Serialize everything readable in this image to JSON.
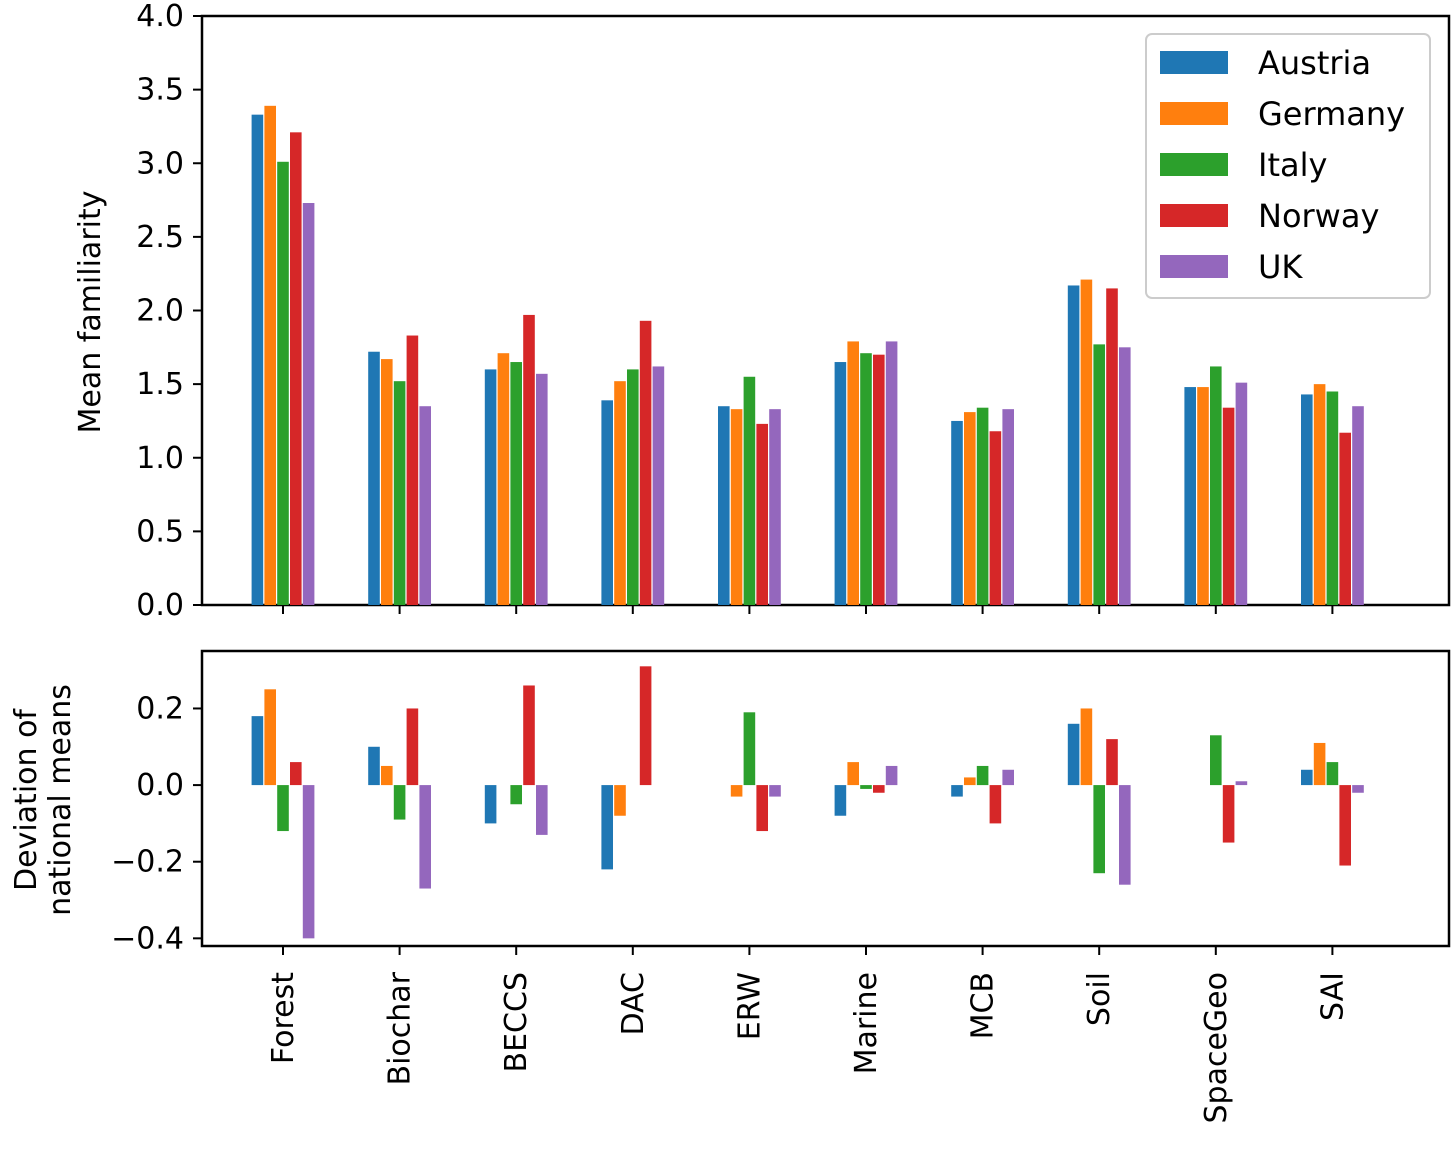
{
  "chart_data": [
    {
      "type": "bar",
      "panel": "top",
      "ylabel": "Mean familiarity",
      "ylim": [
        0,
        4.0
      ],
      "yticks": [
        0.0,
        0.5,
        1.0,
        1.5,
        2.0,
        2.5,
        3.0,
        3.5,
        4.0
      ],
      "ytick_labels": [
        "0.0",
        "0.5",
        "1.0",
        "1.5",
        "2.0",
        "2.5",
        "3.0",
        "3.5",
        "4.0"
      ],
      "legend_position": "top-right",
      "categories": [
        "Forest",
        "Biochar",
        "BECCS",
        "DAC",
        "ERW",
        "Marine",
        "MCB",
        "Soil",
        "SpaceGeo",
        "SAI"
      ],
      "series": [
        {
          "name": "Austria",
          "color": "#1f77b4",
          "values": [
            3.33,
            1.72,
            1.6,
            1.39,
            1.35,
            1.65,
            1.25,
            2.17,
            1.48,
            1.43
          ]
        },
        {
          "name": "Germany",
          "color": "#ff7f0e",
          "values": [
            3.39,
            1.67,
            1.71,
            1.52,
            1.33,
            1.79,
            1.31,
            2.21,
            1.48,
            1.5
          ]
        },
        {
          "name": "Italy",
          "color": "#2ca02c",
          "values": [
            3.01,
            1.52,
            1.65,
            1.6,
            1.55,
            1.71,
            1.34,
            1.77,
            1.62,
            1.45
          ]
        },
        {
          "name": "Norway",
          "color": "#d62728",
          "values": [
            3.21,
            1.83,
            1.97,
            1.93,
            1.23,
            1.7,
            1.18,
            2.15,
            1.34,
            1.17
          ]
        },
        {
          "name": "UK",
          "color": "#9467bd",
          "values": [
            2.73,
            1.35,
            1.57,
            1.62,
            1.33,
            1.79,
            1.33,
            1.75,
            1.51,
            1.35
          ]
        }
      ]
    },
    {
      "type": "bar",
      "panel": "bottom",
      "ylabel_lines": [
        "Deviation of",
        "national means"
      ],
      "ylim": [
        -0.42,
        0.35
      ],
      "yticks": [
        -0.4,
        -0.2,
        0.0,
        0.2
      ],
      "ytick_labels": [
        "−0.4",
        "−0.2",
        "0.0",
        "0.2"
      ],
      "categories": [
        "Forest",
        "Biochar",
        "BECCS",
        "DAC",
        "ERW",
        "Marine",
        "MCB",
        "Soil",
        "SpaceGeo",
        "SAI"
      ],
      "series": [
        {
          "name": "Austria",
          "color": "#1f77b4",
          "values": [
            0.18,
            0.1,
            -0.1,
            -0.22,
            0.0,
            -0.08,
            -0.03,
            0.16,
            0.0,
            0.04
          ]
        },
        {
          "name": "Germany",
          "color": "#ff7f0e",
          "values": [
            0.25,
            0.05,
            0.0,
            -0.08,
            -0.03,
            0.06,
            0.02,
            0.2,
            0.0,
            0.11
          ]
        },
        {
          "name": "Italy",
          "color": "#2ca02c",
          "values": [
            -0.12,
            -0.09,
            -0.05,
            0.0,
            0.19,
            -0.01,
            0.05,
            -0.23,
            0.13,
            0.06
          ]
        },
        {
          "name": "Norway",
          "color": "#d62728",
          "values": [
            0.06,
            0.2,
            0.26,
            0.31,
            -0.12,
            -0.02,
            -0.1,
            0.12,
            -0.15,
            -0.21
          ]
        },
        {
          "name": "UK",
          "color": "#9467bd",
          "values": [
            -0.4,
            -0.27,
            -0.13,
            0.0,
            -0.03,
            0.05,
            0.04,
            -0.26,
            0.01,
            -0.02
          ]
        }
      ]
    }
  ]
}
